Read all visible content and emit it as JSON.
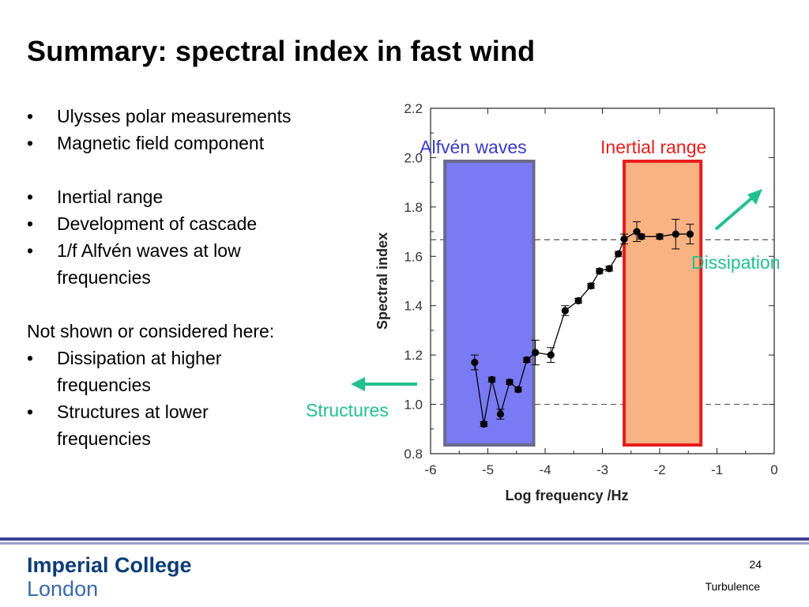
{
  "slide": {
    "title": "Summary: spectral index in fast wind",
    "bullets_a": [
      "Ulysses polar measurements",
      "Magnetic field component"
    ],
    "bullets_b": [
      "Inertial range",
      "Development of cascade",
      "1/f Alfvén waves at low frequencies"
    ],
    "not_shown_heading": "Not shown or considered here:",
    "bullets_c": [
      "Dissipation at higher frequencies",
      "Structures at lower frequencies"
    ],
    "bullet_symbol": "•"
  },
  "footer": {
    "logo_line1": "Imperial College",
    "logo_line2": "London",
    "page_number": "24",
    "section": "Turbulence"
  },
  "chart_data": {
    "type": "scatter",
    "xlabel": "Log frequency /Hz",
    "ylabel": "Spectral index",
    "xlim": [
      -6,
      0
    ],
    "ylim": [
      0.8,
      2.2
    ],
    "x_ticks": [
      -6,
      -5,
      -4,
      -3,
      -2,
      -1,
      0
    ],
    "x_tick_labels": [
      "-6",
      "-5",
      "-4",
      "-3",
      "-2",
      "-1",
      "0"
    ],
    "y_ticks": [
      0.8,
      1.0,
      1.2,
      1.4,
      1.6,
      1.8,
      2.0,
      2.2
    ],
    "y_tick_labels": [
      "0.8",
      "1.0",
      "1.2",
      "1.4",
      "1.6",
      "1.8",
      "2.0",
      "2.2"
    ],
    "reference_lines_y": [
      1.667,
      1.0
    ],
    "series": [
      {
        "color": "#000000",
        "points": [
          {
            "x": -5.23,
            "y": 1.17,
            "err": 0.03
          },
          {
            "x": -5.07,
            "y": 0.92,
            "err": 0.01
          },
          {
            "x": -4.93,
            "y": 1.1,
            "err": 0.01
          },
          {
            "x": -4.78,
            "y": 0.96,
            "err": 0.02
          },
          {
            "x": -4.62,
            "y": 1.09,
            "err": 0.01
          },
          {
            "x": -4.47,
            "y": 1.06,
            "err": 0.01
          },
          {
            "x": -4.32,
            "y": 1.18,
            "err": 0.01
          },
          {
            "x": -4.17,
            "y": 1.21,
            "err": 0.05
          },
          {
            "x": -3.9,
            "y": 1.2,
            "err": 0.03
          },
          {
            "x": -3.65,
            "y": 1.38,
            "err": 0.02
          },
          {
            "x": -3.42,
            "y": 1.42,
            "err": 0.01
          },
          {
            "x": -3.2,
            "y": 1.48,
            "err": 0.01
          },
          {
            "x": -3.05,
            "y": 1.54,
            "err": 0.01
          },
          {
            "x": -2.88,
            "y": 1.55,
            "err": 0.01
          },
          {
            "x": -2.72,
            "y": 1.61,
            "err": 0.01
          },
          {
            "x": -2.62,
            "y": 1.67,
            "err": 0.02
          },
          {
            "x": -2.4,
            "y": 1.7,
            "err": 0.04
          },
          {
            "x": -2.32,
            "y": 1.68,
            "err": 0.01
          },
          {
            "x": -2.0,
            "y": 1.68,
            "err": 0.01
          },
          {
            "x": -1.72,
            "y": 1.69,
            "err": 0.06
          },
          {
            "x": -1.47,
            "y": 1.69,
            "err": 0.04
          }
        ]
      }
    ],
    "regions": [
      {
        "label": "Alfvén waves",
        "x_range": [
          -5.75,
          -4.2
        ],
        "fill": "#7a7af5",
        "stroke": "#6a6a8a",
        "label_color": "#3a3ac8"
      },
      {
        "label": "Inertial range",
        "x_range": [
          -2.62,
          -1.28
        ],
        "fill": "#f9b283",
        "stroke": "#e61c1c",
        "label_color": "#e61c1c"
      }
    ],
    "annotations": [
      {
        "label": "Dissipation",
        "color": "#22c18f",
        "arrow": "up-right"
      },
      {
        "label": "Structures",
        "color": "#22c18f",
        "arrow": "left"
      }
    ]
  }
}
